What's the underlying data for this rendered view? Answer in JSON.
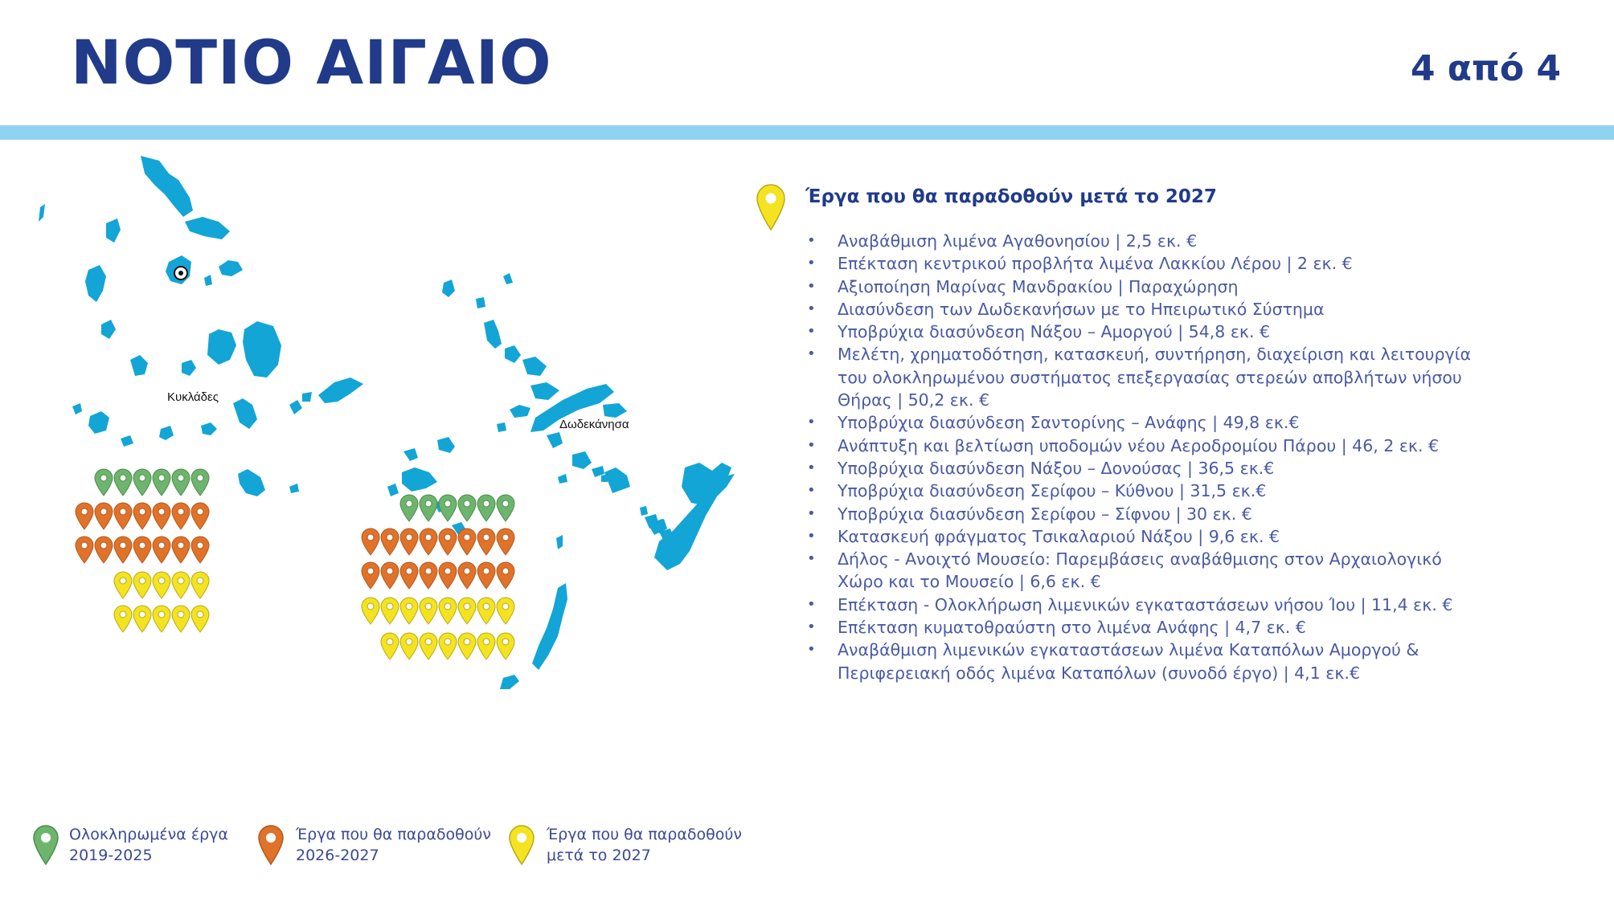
{
  "header": {
    "title": "ΝΟΤΙΟ ΑΙΓΑΙΟ",
    "page_counter": "4 από 4"
  },
  "colors": {
    "title": "#213b8a",
    "accent_bar": "#8fd3f1",
    "island": "#12a5d6",
    "completed": "#6db56d",
    "due_2026_2027": "#e0722a",
    "after_2027": "#f4e321",
    "list_text": "#4a5aa3"
  },
  "map": {
    "labels": {
      "cyclades": "Κυκλάδες",
      "dodecanese": "Δωδεκάνησα"
    },
    "marker_counts": {
      "cyclades": {
        "completed": 6,
        "due_2026_2027": 14,
        "after_2027": 10
      },
      "dodecanese": {
        "completed": 6,
        "due_2026_2027": 16,
        "after_2027": 15
      }
    }
  },
  "projects": {
    "icon": "yellow-pin-icon",
    "title": "Έργα που θα παραδοθούν μετά το 2027",
    "items": [
      "Αναβάθμιση λιμένα Αγαθονησίου | 2,5 εκ. €",
      "Επέκταση κεντρικού προβλήτα λιμένα Λακκίου Λέρου | 2 εκ. €",
      "Αξιοποίηση Μαρίνας Μανδρακίου | Παραχώρηση",
      "Διασύνδεση των Δωδεκανήσων με το Ηπειρωτικό Σύστημα",
      "Υποβρύχια διασύνδεση Νάξου – Αμοργού | 54,8 εκ. €",
      "Μελέτη, χρηματοδότηση, κατασκευή, συντήρηση, διαχείριση και λειτουργία του ολοκληρωμένου συστήματος επεξεργασίας στερεών αποβλήτων νήσου Θήρας | 50,2 εκ. €",
      "Υποβρύχια διασύνδεση Σαντορίνης – Ανάφης | 49,8 εκ.€",
      "Ανάπτυξη και βελτίωση υποδομών νέου Αεροδρομίου Πάρου | 46, 2 εκ. €",
      "Υποβρύχια διασύνδεση Νάξου – Δονούσας | 36,5 εκ.€",
      "Υποβρύχια διασύνδεση Σερίφου – Κύθνου | 31,5 εκ.€",
      "Υποβρύχια διασύνδεση Σερίφου – Σίφνου | 30 εκ. €",
      "Κατασκευή φράγματος Τσικαλαριού Νάξου | 9,6 εκ. €",
      "Δήλος - Ανοιχτό Μουσείο: Παρεμβάσεις αναβάθμισης στον Αρχαιολογικό Χώρο και το Μουσείο | 6,6 εκ. €",
      "Επέκταση - Ολοκλήρωση λιμενικών εγκαταστάσεων νήσου Ίου | 11,4 εκ. €",
      "Επέκταση κυματοθραύστη στο λιμένα Ανάφης | 4,7 εκ. €",
      "Αναβάθμιση λιμενικών εγκαταστάσεων λιμένα Καταπόλων Αμοργού & Περιφερειακή οδός λιμένα Καταπόλων (συνοδό έργο) | 4,1 εκ.€"
    ]
  },
  "legend": [
    {
      "icon": "green-pin-icon",
      "label": "Ολοκληρωμένα έργα 2019-2025",
      "line1": "Ολοκληρωμένα έργα",
      "line2": "2019-2025"
    },
    {
      "icon": "orange-pin-icon",
      "label": "Έργα που θα παραδοθούν 2026-2027",
      "line1": "Έργα που θα παραδοθούν",
      "line2": "2026-2027"
    },
    {
      "icon": "yellow-pin-icon",
      "label": "Έργα που θα παραδοθούν μετά το 2027",
      "line1": "Έργα που θα παραδοθούν",
      "line2": "μετά το 2027"
    }
  ]
}
